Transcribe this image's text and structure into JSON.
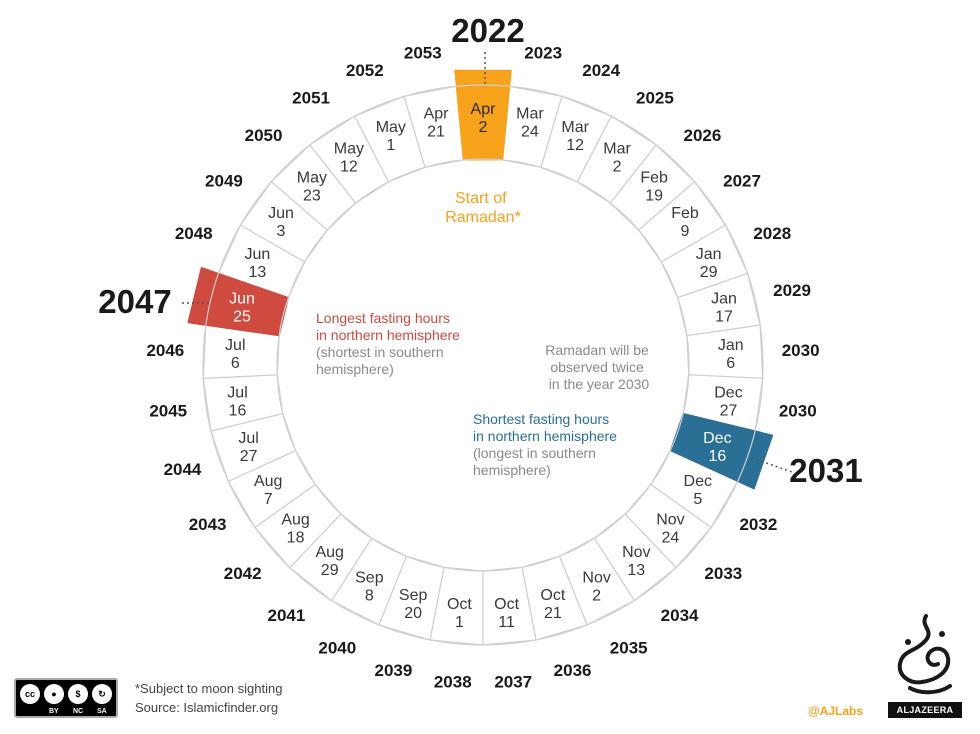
{
  "wheel": {
    "segments": [
      {
        "year": "2022",
        "date": [
          "Apr",
          "2"
        ],
        "highlight": "orange"
      },
      {
        "year": "2023",
        "date": [
          "Mar",
          "24"
        ]
      },
      {
        "year": "2024",
        "date": [
          "Mar",
          "12"
        ]
      },
      {
        "year": "2025",
        "date": [
          "Mar",
          "2"
        ]
      },
      {
        "year": "2026",
        "date": [
          "Feb",
          "19"
        ]
      },
      {
        "year": "2027",
        "date": [
          "Feb",
          "9"
        ]
      },
      {
        "year": "2028",
        "date": [
          "Jan",
          "29"
        ]
      },
      {
        "year": "2029",
        "date": [
          "Jan",
          "17"
        ]
      },
      {
        "year": "2030",
        "date": [
          "Jan",
          "6"
        ]
      },
      {
        "year": "2030",
        "date": [
          "Dec",
          "27"
        ]
      },
      {
        "year": "2031",
        "date": [
          "Dec",
          "16"
        ],
        "highlight": "blue"
      },
      {
        "year": "2032",
        "date": [
          "Dec",
          "5"
        ]
      },
      {
        "year": "2033",
        "date": [
          "Nov",
          "24"
        ]
      },
      {
        "year": "2034",
        "date": [
          "Nov",
          "13"
        ]
      },
      {
        "year": "2035",
        "date": [
          "Nov",
          "2"
        ]
      },
      {
        "year": "2036",
        "date": [
          "Oct",
          "21"
        ]
      },
      {
        "year": "2037",
        "date": [
          "Oct",
          "11"
        ]
      },
      {
        "year": "2038",
        "date": [
          "Oct",
          "1"
        ]
      },
      {
        "year": "2039",
        "date": [
          "Sep",
          "20"
        ]
      },
      {
        "year": "2040",
        "date": [
          "Sep",
          "8"
        ]
      },
      {
        "year": "2041",
        "date": [
          "Aug",
          "29"
        ]
      },
      {
        "year": "2042",
        "date": [
          "Aug",
          "18"
        ]
      },
      {
        "year": "2043",
        "date": [
          "Aug",
          "7"
        ]
      },
      {
        "year": "2044",
        "date": [
          "Jul",
          "27"
        ]
      },
      {
        "year": "2045",
        "date": [
          "Jul",
          "16"
        ]
      },
      {
        "year": "2046",
        "date": [
          "Jul",
          "6"
        ]
      },
      {
        "year": "2047",
        "date": [
          "Jun",
          "25"
        ],
        "highlight": "red"
      },
      {
        "year": "2048",
        "date": [
          "Jun",
          "13"
        ]
      },
      {
        "year": "2049",
        "date": [
          "Jun",
          "3"
        ]
      },
      {
        "year": "2050",
        "date": [
          "May",
          "23"
        ]
      },
      {
        "year": "2051",
        "date": [
          "May",
          "12"
        ]
      },
      {
        "year": "2052",
        "date": [
          "May",
          "1"
        ]
      },
      {
        "year": "2053",
        "date": [
          "Apr",
          "21"
        ]
      }
    ],
    "colors": {
      "orange": "#f7a21b",
      "red": "#cf4a3f",
      "blue": "#2a6f96",
      "grey_note": "#8a8a8a",
      "ring": "#cfcfcf"
    }
  },
  "notes": {
    "start": [
      "Start of",
      "Ramadan*"
    ],
    "longest": [
      "Longest fasting hours",
      "in northern hemisphere"
    ],
    "longest_sub": [
      "(shortest in southern",
      "hemisphere)"
    ],
    "twice": [
      "Ramadan will be",
      "observed twice",
      "in the year 2030"
    ],
    "shortest": [
      "Shortest fasting hours",
      "in northern hemisphere"
    ],
    "shortest_sub": [
      "(longest in southern",
      "hemisphere)"
    ]
  },
  "footer": {
    "footnote": "*Subject to moon sighting",
    "source": "Source: Islamicfinder.org",
    "credit": "@AJLabs",
    "brand": "ALJAZEERA",
    "license": [
      "cc",
      "BY",
      "NC",
      "SA"
    ]
  }
}
